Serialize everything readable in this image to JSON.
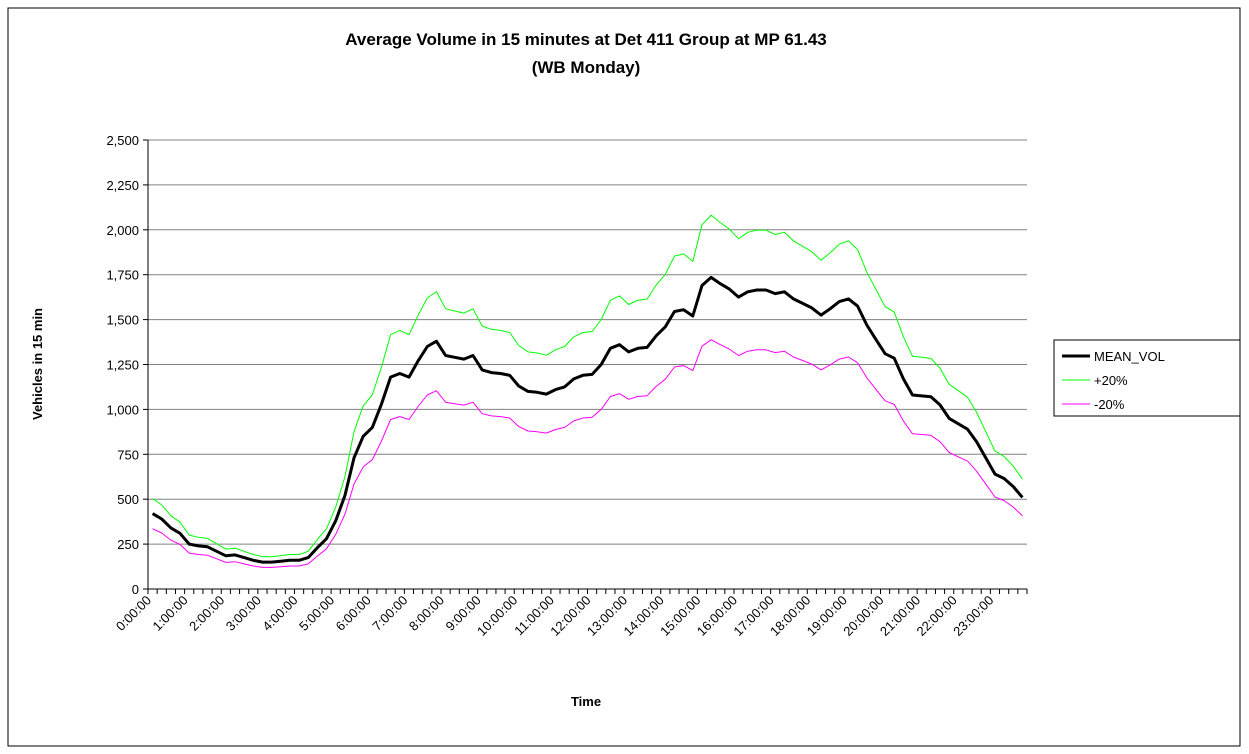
{
  "chart_data": {
    "type": "line",
    "title": "Average Volume in 15 minutes at Det 411 Group at MP 61.43",
    "subtitle": "(WB Monday)",
    "x_label": "Time",
    "y_label": "Vehicles in 15 min",
    "categories": [
      "0:00:00",
      null,
      null,
      null,
      "1:00:00",
      null,
      null,
      null,
      "2:00:00",
      null,
      null,
      null,
      "3:00:00",
      null,
      null,
      null,
      "4:00:00",
      null,
      null,
      null,
      "5:00:00",
      null,
      null,
      null,
      "6:00:00",
      null,
      null,
      null,
      "7:00:00",
      null,
      null,
      null,
      "8:00:00",
      null,
      null,
      null,
      "9:00:00",
      null,
      null,
      null,
      "10:00:00",
      null,
      null,
      null,
      "11:00:00",
      null,
      null,
      null,
      "12:00:00",
      null,
      null,
      null,
      "13:00:00",
      null,
      null,
      null,
      "14:00:00",
      null,
      null,
      null,
      "15:00:00",
      null,
      null,
      null,
      "16:00:00",
      null,
      null,
      null,
      "17:00:00",
      null,
      null,
      null,
      "18:00:00",
      null,
      null,
      null,
      "19:00:00",
      null,
      null,
      null,
      "20:00:00",
      null,
      null,
      null,
      "21:00:00",
      null,
      null,
      null,
      "22:00:00",
      null,
      null,
      null,
      "23:00:00",
      null,
      null,
      null
    ],
    "series": [
      {
        "name": "MEAN_VOL",
        "color": "#000000",
        "width": 3,
        "values": [
          420,
          390,
          340,
          310,
          250,
          240,
          235,
          210,
          185,
          190,
          175,
          160,
          150,
          150,
          155,
          160,
          160,
          175,
          230,
          280,
          380,
          520,
          730,
          850,
          900,
          1030,
          1180,
          1200,
          1180,
          1270,
          1350,
          1380,
          1300,
          1290,
          1280,
          1300,
          1220,
          1205,
          1200,
          1190,
          1130,
          1100,
          1095,
          1085,
          1110,
          1125,
          1170,
          1190,
          1195,
          1250,
          1340,
          1360,
          1320,
          1340,
          1345,
          1410,
          1460,
          1545,
          1555,
          1520,
          1690,
          1735,
          1700,
          1670,
          1625,
          1655,
          1665,
          1665,
          1645,
          1655,
          1615,
          1590,
          1565,
          1525,
          1560,
          1600,
          1615,
          1575,
          1470,
          1390,
          1310,
          1285,
          1170,
          1080,
          1075,
          1070,
          1025,
          950,
          920,
          890,
          820,
          730,
          640,
          615,
          570,
          510
        ]
      },
      {
        "name": "+20%",
        "color": "#00ff00",
        "width": 1,
        "values": [
          504,
          468,
          408,
          372,
          300,
          288,
          282,
          252,
          222,
          228,
          210,
          192,
          180,
          180,
          186,
          192,
          192,
          210,
          276,
          336,
          456,
          624,
          876,
          1020,
          1080,
          1236,
          1416,
          1440,
          1416,
          1524,
          1620,
          1656,
          1560,
          1548,
          1536,
          1560,
          1464,
          1446,
          1440,
          1428,
          1356,
          1320,
          1314,
          1302,
          1332,
          1350,
          1404,
          1428,
          1434,
          1500,
          1608,
          1632,
          1584,
          1608,
          1614,
          1692,
          1752,
          1854,
          1866,
          1824,
          2028,
          2082,
          2040,
          2004,
          1950,
          1986,
          1998,
          1998,
          1974,
          1986,
          1938,
          1908,
          1878,
          1830,
          1872,
          1920,
          1938,
          1890,
          1764,
          1668,
          1572,
          1542,
          1404,
          1296,
          1290,
          1284,
          1230,
          1140,
          1104,
          1068,
          984,
          876,
          768,
          738,
          684,
          612
        ]
      },
      {
        "name": "-20%",
        "color": "#ff00ff",
        "width": 1,
        "values": [
          336,
          312,
          272,
          248,
          200,
          192,
          188,
          168,
          148,
          152,
          140,
          128,
          120,
          120,
          124,
          128,
          128,
          140,
          184,
          224,
          304,
          416,
          584,
          680,
          720,
          824,
          944,
          960,
          944,
          1016,
          1080,
          1104,
          1040,
          1032,
          1024,
          1040,
          976,
          964,
          960,
          952,
          904,
          880,
          876,
          868,
          888,
          900,
          936,
          952,
          956,
          1000,
          1072,
          1088,
          1056,
          1072,
          1076,
          1128,
          1168,
          1236,
          1244,
          1216,
          1352,
          1388,
          1360,
          1336,
          1300,
          1324,
          1332,
          1332,
          1316,
          1324,
          1292,
          1272,
          1252,
          1220,
          1248,
          1280,
          1292,
          1260,
          1176,
          1112,
          1048,
          1028,
          936,
          864,
          860,
          856,
          820,
          760,
          736,
          712,
          656,
          584,
          512,
          492,
          456,
          408
        ]
      }
    ],
    "ylim": [
      0,
      2500
    ],
    "yticks": [
      0,
      250,
      500,
      750,
      {
        "value": 1000,
        "label": "1,000"
      },
      {
        "value": 1250,
        "label": "1,250"
      },
      {
        "value": 1500,
        "label": "1,500"
      },
      {
        "value": 1750,
        "label": "1,750"
      },
      {
        "value": 2000,
        "label": "2,000"
      },
      {
        "value": 2250,
        "label": "2,250"
      },
      {
        "value": 2500,
        "label": "2,500"
      }
    ],
    "grid": true,
    "legend": "right"
  }
}
